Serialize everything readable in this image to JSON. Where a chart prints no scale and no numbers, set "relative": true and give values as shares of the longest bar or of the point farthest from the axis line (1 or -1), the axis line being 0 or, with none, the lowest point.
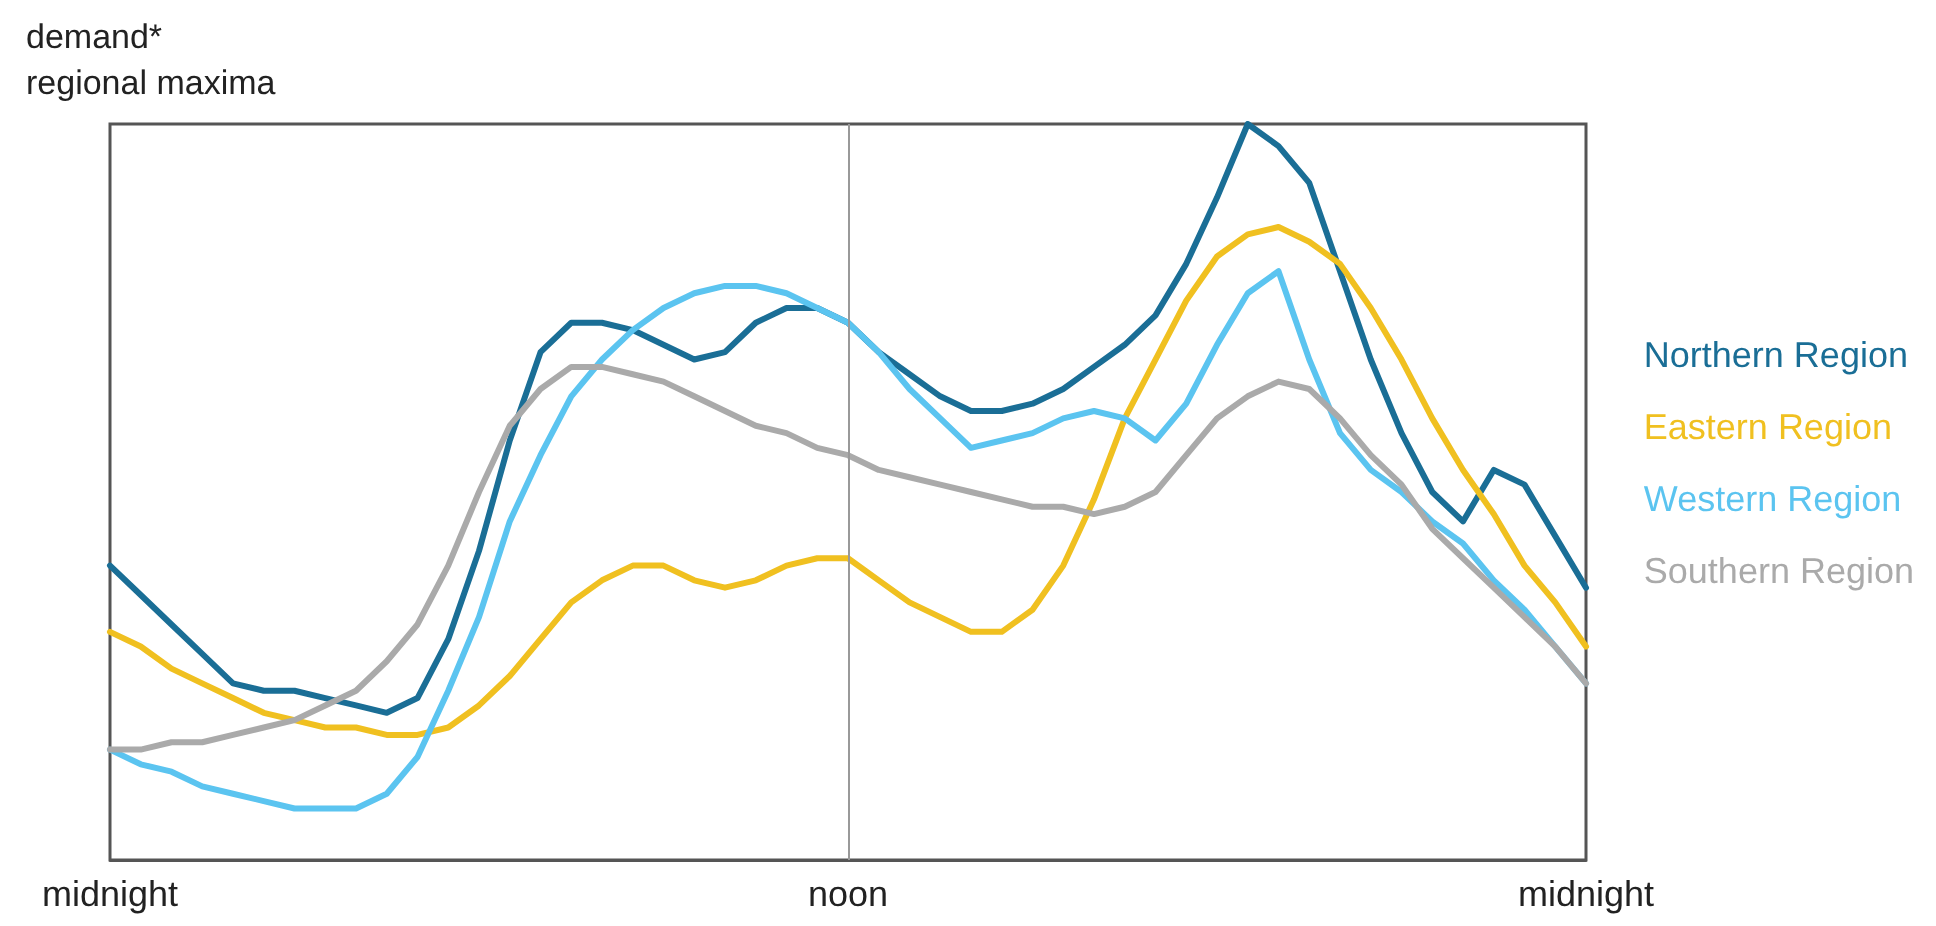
{
  "chart_data": {
    "type": "line",
    "ylabel": "demand*\nregional maxima",
    "relative": true,
    "categories": [
      "midnight",
      null,
      null,
      null,
      null,
      null,
      null,
      null,
      null,
      null,
      null,
      null,
      null,
      null,
      null,
      null,
      null,
      null,
      null,
      null,
      null,
      null,
      null,
      null,
      "noon",
      null,
      null,
      null,
      null,
      null,
      null,
      null,
      null,
      null,
      null,
      null,
      null,
      null,
      null,
      null,
      null,
      null,
      null,
      null,
      null,
      null,
      null,
      null,
      "midnight"
    ],
    "grid": false,
    "legend": "right",
    "marker": "none",
    "line_style": "solid",
    "ref_lines": [
      {
        "axis": "x",
        "value": "noon",
        "color": "#999999"
      }
    ],
    "series": [
      {
        "name": "Northern Region",
        "color": "#1a6e96",
        "values": [
          0.4,
          0.36,
          0.32,
          0.28,
          0.24,
          0.23,
          0.23,
          0.22,
          0.21,
          0.2,
          0.22,
          0.3,
          0.42,
          0.57,
          0.69,
          0.73,
          0.73,
          0.72,
          0.7,
          0.68,
          0.69,
          0.73,
          0.75,
          0.75,
          0.73,
          0.69,
          0.66,
          0.63,
          0.61,
          0.61,
          0.62,
          0.64,
          0.67,
          0.7,
          0.74,
          0.81,
          0.9,
          1.0,
          0.97,
          0.92,
          0.8,
          0.68,
          0.58,
          0.5,
          0.46,
          0.53,
          0.51,
          0.44,
          0.37
        ]
      },
      {
        "name": "Eastern Region",
        "color": "#f0c020",
        "values": [
          0.31,
          0.29,
          0.26,
          0.24,
          0.22,
          0.2,
          0.19,
          0.18,
          0.18,
          0.17,
          0.17,
          0.18,
          0.21,
          0.25,
          0.3,
          0.35,
          0.38,
          0.4,
          0.4,
          0.38,
          0.37,
          0.38,
          0.4,
          0.41,
          0.41,
          0.38,
          0.35,
          0.33,
          0.31,
          0.31,
          0.34,
          0.4,
          0.49,
          0.6,
          0.68,
          0.76,
          0.82,
          0.85,
          0.86,
          0.84,
          0.81,
          0.75,
          0.68,
          0.6,
          0.53,
          0.47,
          0.4,
          0.35,
          0.29
        ]
      },
      {
        "name": "Western Region",
        "color": "#5bc4f0",
        "values": [
          0.15,
          0.13,
          0.12,
          0.1,
          0.09,
          0.08,
          0.07,
          0.07,
          0.07,
          0.09,
          0.14,
          0.23,
          0.33,
          0.46,
          0.55,
          0.63,
          0.68,
          0.72,
          0.75,
          0.77,
          0.78,
          0.78,
          0.77,
          0.75,
          0.73,
          0.69,
          0.64,
          0.6,
          0.56,
          0.57,
          0.58,
          0.6,
          0.61,
          0.6,
          0.57,
          0.62,
          0.7,
          0.77,
          0.8,
          0.68,
          0.58,
          0.53,
          0.5,
          0.46,
          0.43,
          0.38,
          0.34,
          0.29,
          0.24
        ]
      },
      {
        "name": "Southern Region",
        "color": "#aaaaaa",
        "values": [
          0.15,
          0.15,
          0.16,
          0.16,
          0.17,
          0.18,
          0.19,
          0.21,
          0.23,
          0.27,
          0.32,
          0.4,
          0.5,
          0.59,
          0.64,
          0.67,
          0.67,
          0.66,
          0.65,
          0.63,
          0.61,
          0.59,
          0.58,
          0.56,
          0.55,
          0.53,
          0.52,
          0.51,
          0.5,
          0.49,
          0.48,
          0.48,
          0.47,
          0.48,
          0.5,
          0.55,
          0.6,
          0.63,
          0.65,
          0.64,
          0.6,
          0.55,
          0.51,
          0.45,
          0.41,
          0.37,
          0.33,
          0.29,
          0.24
        ]
      }
    ]
  }
}
